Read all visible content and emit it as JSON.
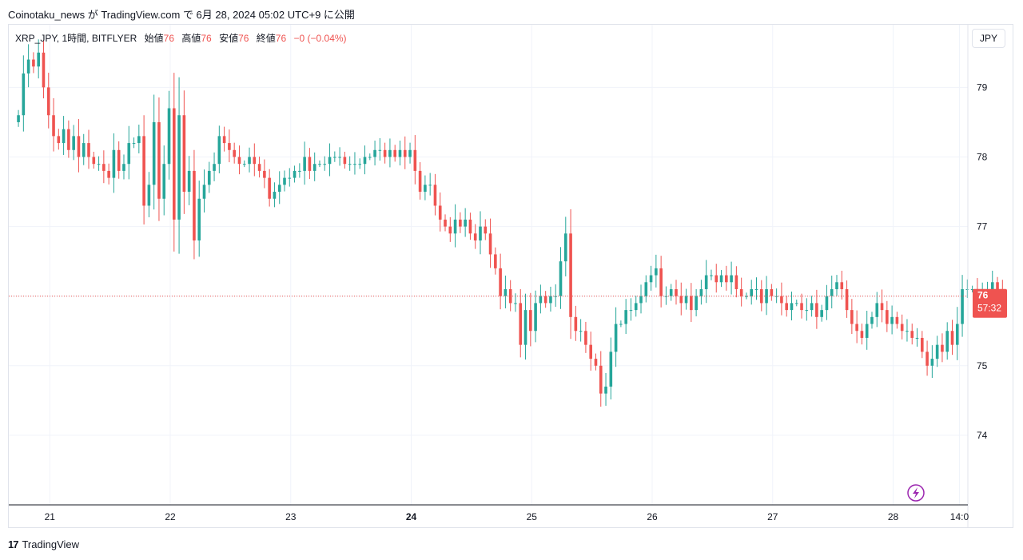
{
  "header": {
    "published_line": "Coinotaku_news が TradingView.com で 6月 28, 2024 05:02 UTC+9 に公開"
  },
  "legend": {
    "symbol": "XRP_JPY, 1時間, BITFLYER",
    "open_label": "始値",
    "open_value": "76",
    "high_label": "高値",
    "high_value": "76",
    "low_label": "安値",
    "low_value": "76",
    "close_label": "終値",
    "close_value": "76",
    "change": "−0 (−0.04%)"
  },
  "currency_button": "JPY",
  "price_tag": {
    "price": "76",
    "countdown": "57:32"
  },
  "footer": {
    "brand": "TradingView"
  },
  "colors": {
    "up": "#26a69a",
    "down": "#ef5350",
    "grid": "#f0f3fa",
    "axis": "#131722"
  },
  "icons": {
    "lightning": "lightning-icon",
    "logo": "tradingview-logo-icon"
  },
  "chart_data": {
    "type": "candlestick",
    "ylim": [
      73.0,
      79.9
    ],
    "yticks": [
      "79",
      "78",
      "77",
      "76",
      "75",
      "74"
    ],
    "xticks": [
      {
        "label": "21",
        "day": 0.84,
        "bold": false
      },
      {
        "label": "22",
        "day": 1.84,
        "bold": false
      },
      {
        "label": "23",
        "day": 2.84,
        "bold": false
      },
      {
        "label": "24",
        "day": 3.84,
        "bold": true
      },
      {
        "label": "25",
        "day": 4.84,
        "bold": false
      },
      {
        "label": "26",
        "day": 5.84,
        "bold": false
      },
      {
        "label": "27",
        "day": 6.84,
        "bold": false
      },
      {
        "label": "28",
        "day": 7.84,
        "bold": false
      },
      {
        "label": "14:0",
        "day": 8.39,
        "bold": false
      }
    ],
    "last_price": 76.0,
    "start_day": 0.58,
    "step_days": 0.04167,
    "closes": [
      78.6,
      79.2,
      79.4,
      79.3,
      79.5,
      79.0,
      78.6,
      78.3,
      78.2,
      78.4,
      78.1,
      78.3,
      78.0,
      78.2,
      78.0,
      77.9,
      77.9,
      77.8,
      77.7,
      78.1,
      77.8,
      77.9,
      78.2,
      78.2,
      78.3,
      77.3,
      77.6,
      78.5,
      77.4,
      77.9,
      78.7,
      77.1,
      78.6,
      77.5,
      77.8,
      76.8,
      77.4,
      77.6,
      77.8,
      77.9,
      78.3,
      78.2,
      78.1,
      78.0,
      77.9,
      77.9,
      78.0,
      77.9,
      77.8,
      77.7,
      77.4,
      77.5,
      77.6,
      77.7,
      77.7,
      77.8,
      77.8,
      78.0,
      77.8,
      77.9,
      77.9,
      77.9,
      78.0,
      78.0,
      78.0,
      77.9,
      77.9,
      77.9,
      77.9,
      78.0,
      78.0,
      78.1,
      78.1,
      78.0,
      78.1,
      78.0,
      78.1,
      78.0,
      78.1,
      77.8,
      77.5,
      77.6,
      77.6,
      77.3,
      77.1,
      77.0,
      76.9,
      77.1,
      77.0,
      77.1,
      76.9,
      76.8,
      77.0,
      76.9,
      76.6,
      76.4,
      76.0,
      76.1,
      75.9,
      75.9,
      75.3,
      75.8,
      75.5,
      75.9,
      76.0,
      75.9,
      76.0,
      76.0,
      76.5,
      76.9,
      75.7,
      75.5,
      75.5,
      75.3,
      75.1,
      75.0,
      74.6,
      74.7,
      75.2,
      75.6,
      75.6,
      75.8,
      75.8,
      75.9,
      76.0,
      76.2,
      76.3,
      76.4,
      76.0,
      76.0,
      76.1,
      76.0,
      75.9,
      76.0,
      75.8,
      76.0,
      76.1,
      76.3,
      76.3,
      76.2,
      76.3,
      76.2,
      76.3,
      76.1,
      76.0,
      76.0,
      76.1,
      76.1,
      75.9,
      76.1,
      76.0,
      76.0,
      75.9,
      75.8,
      75.9,
      75.9,
      75.8,
      75.8,
      75.9,
      75.7,
      75.8,
      76.0,
      76.1,
      76.2,
      76.1,
      75.8,
      75.6,
      75.5,
      75.4,
      75.6,
      75.7,
      75.9,
      75.8,
      75.6,
      75.7,
      75.6,
      75.5,
      75.5,
      75.4,
      75.4,
      75.2,
      75.0,
      75.1,
      75.3,
      75.2,
      75.5,
      75.3,
      75.6,
      76.1,
      76.1,
      76.1,
      75.9,
      76.0,
      76.1,
      76.2,
      76.1,
      76.0
    ]
  }
}
